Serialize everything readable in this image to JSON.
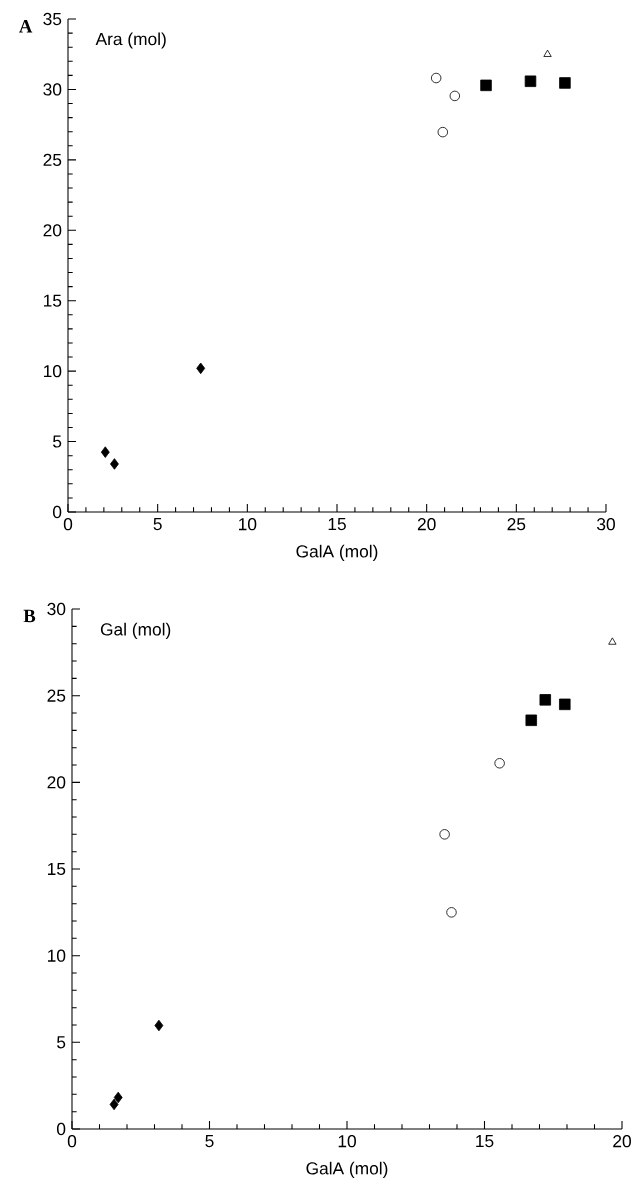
{
  "chart_data": [
    {
      "type": "scatter",
      "xlabel": "GalA (mol)",
      "ylabel": "Ara (mol)",
      "annotations": [
        "A"
      ],
      "xlim": [
        0,
        30
      ],
      "ylim": [
        0,
        35
      ],
      "xticks": [
        0,
        5,
        10,
        15,
        20,
        25,
        30
      ],
      "yticks": [
        0,
        5,
        10,
        15,
        20,
        25,
        30,
        35
      ],
      "grid": false,
      "series": [
        {
          "color": "#000000",
          "marker": "diamond",
          "x": [
            2.08,
            2.59,
            7.4
          ],
          "values": [
            4.25,
            3.41,
            10.2
          ]
        },
        {
          "color": "#000000",
          "marker": "circle",
          "x": [
            20.53,
            21.57,
            20.9
          ],
          "values": [
            30.81,
            29.54,
            26.97
          ]
        },
        {
          "color": "#000000",
          "marker": "square",
          "x": [
            23.31,
            25.79,
            27.71
          ],
          "values": [
            30.29,
            30.58,
            30.46
          ]
        },
        {
          "color": "#000000",
          "marker": "triangle",
          "x": [
            26.74
          ],
          "values": [
            32.49
          ]
        }
      ]
    },
    {
      "type": "scatter",
      "xlabel": "GalA (mol)",
      "ylabel": "Gal (mol)",
      "annotations": [
        "B"
      ],
      "xlim": [
        0,
        20
      ],
      "ylim": [
        0,
        30
      ],
      "xticks": [
        0,
        5,
        10,
        15,
        20
      ],
      "yticks": [
        0,
        5,
        10,
        15,
        20,
        25,
        30
      ],
      "grid": false,
      "series": [
        {
          "color": "#000000",
          "marker": "diamond",
          "x": [
            1.53,
            1.68,
            3.16
          ],
          "values": [
            1.42,
            1.82,
            5.97
          ]
        },
        {
          "color": "#000000",
          "marker": "circle",
          "x": [
            13.55,
            13.8,
            15.55
          ],
          "values": [
            17.0,
            12.5,
            21.1
          ]
        },
        {
          "color": "#000000",
          "marker": "square",
          "x": [
            16.7,
            17.21,
            17.92
          ],
          "values": [
            23.58,
            24.76,
            24.5
          ]
        },
        {
          "color": "#000000",
          "marker": "triangle",
          "x": [
            19.65
          ],
          "values": [
            28.09
          ]
        }
      ]
    }
  ]
}
